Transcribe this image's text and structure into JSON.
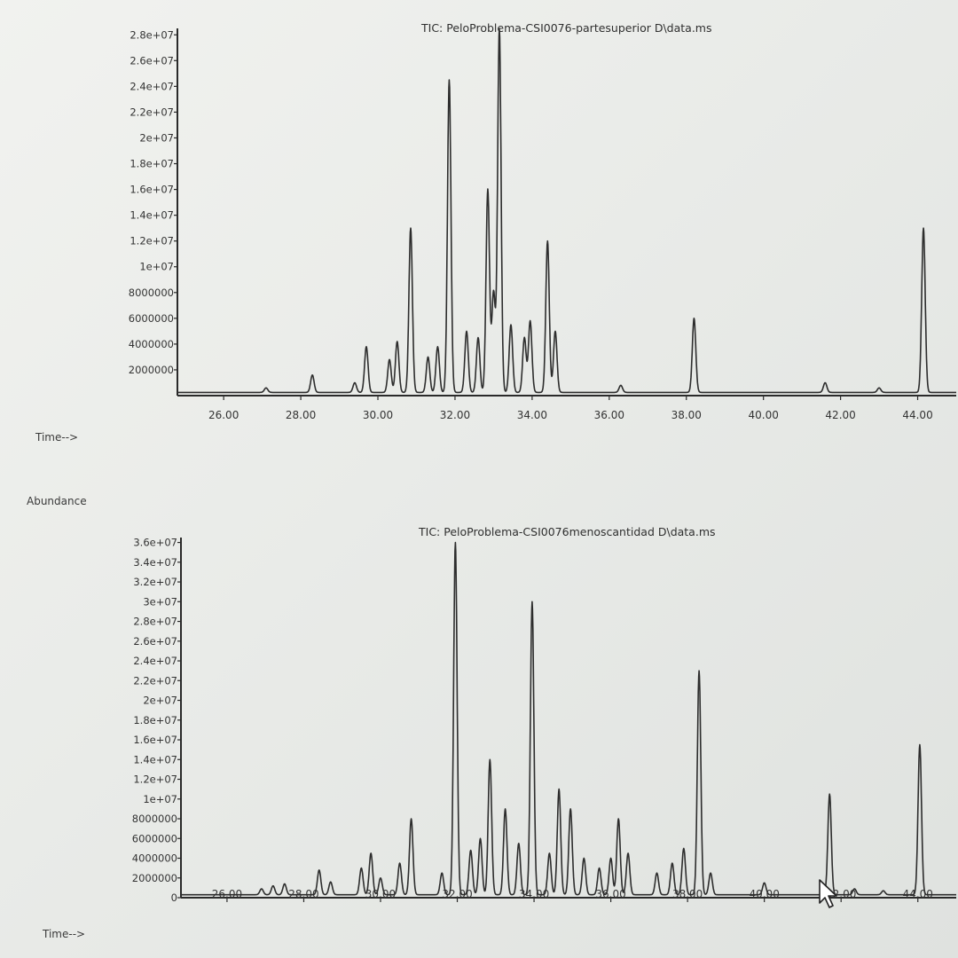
{
  "labels": {
    "time_top": "Time-->",
    "abundance": "Abundance",
    "time_bottom": "Time-->"
  },
  "cursor_icon": "mouse-pointer-icon",
  "chart_data": [
    {
      "type": "line",
      "title": "TIC: PeloProblema-CSI0076-partesuperior D\\data.ms",
      "xlabel": "Time-->",
      "ylabel": "",
      "xlim": [
        24.8,
        45.0
      ],
      "ylim": [
        0,
        28500000
      ],
      "x_ticks": [
        26.0,
        28.0,
        30.0,
        32.0,
        34.0,
        36.0,
        38.0,
        40.0,
        42.0,
        44.0
      ],
      "x_tick_labels": [
        "26.00",
        "28.00",
        "30.00",
        "32.00",
        "34.00",
        "36.00",
        "38.00",
        "40.00",
        "42.00",
        "44.00"
      ],
      "y_ticks": [
        2000000,
        4000000,
        6000000,
        8000000,
        10000000,
        12000000,
        14000000,
        16000000,
        18000000,
        20000000,
        22000000,
        24000000,
        26000000,
        28000000
      ],
      "y_tick_labels": [
        "2000000",
        "4000000",
        "6000000",
        "8000000",
        "1e+07",
        "1.2e+07",
        "1.4e+07",
        "1.6e+07",
        "1.8e+07",
        "2e+07",
        "2.2e+07",
        "2.4e+07",
        "2.6e+07",
        "2.8e+07"
      ],
      "baseline": 250000,
      "peaks": [
        {
          "x": 27.1,
          "y": 600000
        },
        {
          "x": 28.3,
          "y": 1600000
        },
        {
          "x": 29.4,
          "y": 1000000
        },
        {
          "x": 29.7,
          "y": 3800000
        },
        {
          "x": 30.3,
          "y": 2800000
        },
        {
          "x": 30.5,
          "y": 4200000
        },
        {
          "x": 30.85,
          "y": 13000000
        },
        {
          "x": 31.3,
          "y": 3000000
        },
        {
          "x": 31.55,
          "y": 3800000
        },
        {
          "x": 31.85,
          "y": 24500000
        },
        {
          "x": 32.3,
          "y": 5000000
        },
        {
          "x": 32.6,
          "y": 4500000
        },
        {
          "x": 32.85,
          "y": 16000000
        },
        {
          "x": 33.0,
          "y": 8000000
        },
        {
          "x": 33.15,
          "y": 28500000
        },
        {
          "x": 33.45,
          "y": 5500000
        },
        {
          "x": 33.8,
          "y": 4500000
        },
        {
          "x": 33.95,
          "y": 5800000
        },
        {
          "x": 34.4,
          "y": 12000000
        },
        {
          "x": 34.6,
          "y": 5000000
        },
        {
          "x": 36.3,
          "y": 800000
        },
        {
          "x": 38.2,
          "y": 6000000
        },
        {
          "x": 41.6,
          "y": 1000000
        },
        {
          "x": 43.0,
          "y": 600000
        },
        {
          "x": 44.15,
          "y": 13000000
        }
      ]
    },
    {
      "type": "line",
      "title": "TIC: PeloProblema-CSI0076menoscantidad D\\data.ms",
      "xlabel": "Time-->",
      "ylabel": "Abundance",
      "xlim": [
        24.8,
        45.0
      ],
      "ylim": [
        0,
        36500000
      ],
      "x_ticks": [
        26.0,
        28.0,
        30.0,
        32.0,
        34.0,
        36.0,
        38.0,
        40.0,
        42.0,
        44.0
      ],
      "x_tick_labels": [
        "26.00",
        "28.00",
        "30.00",
        "32.00",
        "34.00",
        "36.00",
        "38.00",
        "40.00",
        "42.00",
        "44.00"
      ],
      "y_ticks": [
        0,
        2000000,
        4000000,
        6000000,
        8000000,
        10000000,
        12000000,
        14000000,
        16000000,
        18000000,
        20000000,
        22000000,
        24000000,
        26000000,
        28000000,
        30000000,
        32000000,
        34000000,
        36000000
      ],
      "y_tick_labels": [
        "0",
        "2000000",
        "4000000",
        "6000000",
        "8000000",
        "1e+07",
        "1.2e+07",
        "1.4e+07",
        "1.6e+07",
        "1.8e+07",
        "2e+07",
        "2.2e+07",
        "2.4e+07",
        "2.6e+07",
        "2.8e+07",
        "3e+07",
        "3.2e+07",
        "3.4e+07",
        "3.6e+07"
      ],
      "baseline": 300000,
      "peaks": [
        {
          "x": 26.9,
          "y": 900000
        },
        {
          "x": 27.2,
          "y": 1200000
        },
        {
          "x": 27.5,
          "y": 1400000
        },
        {
          "x": 28.4,
          "y": 2800000
        },
        {
          "x": 28.7,
          "y": 1600000
        },
        {
          "x": 29.5,
          "y": 3000000
        },
        {
          "x": 29.75,
          "y": 4500000
        },
        {
          "x": 30.0,
          "y": 2000000
        },
        {
          "x": 30.5,
          "y": 3500000
        },
        {
          "x": 30.8,
          "y": 8000000
        },
        {
          "x": 31.6,
          "y": 2500000
        },
        {
          "x": 31.95,
          "y": 36000000
        },
        {
          "x": 32.35,
          "y": 4800000
        },
        {
          "x": 32.6,
          "y": 6000000
        },
        {
          "x": 32.85,
          "y": 14000000
        },
        {
          "x": 33.25,
          "y": 9000000
        },
        {
          "x": 33.6,
          "y": 5500000
        },
        {
          "x": 33.95,
          "y": 30000000
        },
        {
          "x": 34.4,
          "y": 4500000
        },
        {
          "x": 34.65,
          "y": 11000000
        },
        {
          "x": 34.95,
          "y": 9000000
        },
        {
          "x": 35.3,
          "y": 4000000
        },
        {
          "x": 35.7,
          "y": 3000000
        },
        {
          "x": 36.0,
          "y": 4000000
        },
        {
          "x": 36.2,
          "y": 8000000
        },
        {
          "x": 36.45,
          "y": 4500000
        },
        {
          "x": 37.2,
          "y": 2500000
        },
        {
          "x": 37.6,
          "y": 3500000
        },
        {
          "x": 37.9,
          "y": 5000000
        },
        {
          "x": 38.3,
          "y": 23000000
        },
        {
          "x": 38.6,
          "y": 2500000
        },
        {
          "x": 40.0,
          "y": 1500000
        },
        {
          "x": 41.7,
          "y": 10500000
        },
        {
          "x": 42.35,
          "y": 900000
        },
        {
          "x": 43.1,
          "y": 700000
        },
        {
          "x": 44.05,
          "y": 15500000
        }
      ]
    }
  ]
}
